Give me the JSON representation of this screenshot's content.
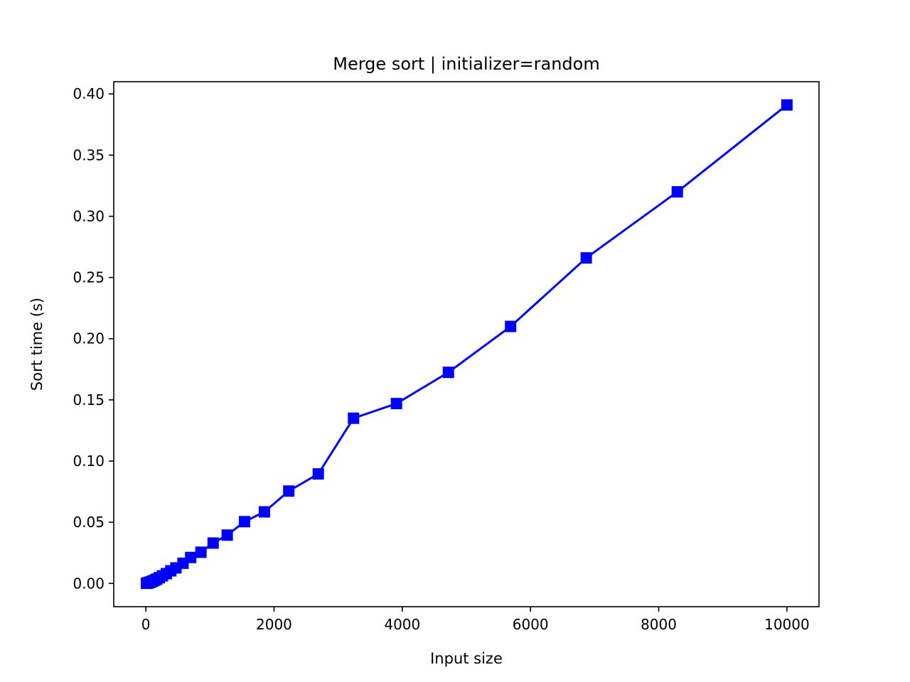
{
  "chart_data": {
    "type": "line",
    "title": "Merge sort | initializer=random",
    "xlabel": "Input size",
    "ylabel": "Sort time (s)",
    "xlim": [
      -500,
      10500
    ],
    "ylim": [
      -0.019,
      0.41
    ],
    "xticks": [
      0,
      2000,
      4000,
      6000,
      8000,
      10000
    ],
    "xtick_labels": [
      "0",
      "2000",
      "4000",
      "6000",
      "8000",
      "10000"
    ],
    "yticks": [
      0.0,
      0.05,
      0.1,
      0.15,
      0.2,
      0.25,
      0.3,
      0.35,
      0.4
    ],
    "ytick_labels": [
      "0.00",
      "0.05",
      "0.10",
      "0.15",
      "0.20",
      "0.25",
      "0.30",
      "0.35",
      "0.40"
    ],
    "grid": false,
    "legend": "none",
    "series": [
      {
        "color": "#0000ff",
        "marker": "square",
        "x": [
          10,
          20,
          30,
          40,
          55,
          70,
          90,
          110,
          140,
          170,
          210,
          260,
          320,
          390,
          470,
          580,
          700,
          860,
          1050,
          1270,
          1540,
          1850,
          2230,
          2690,
          3240,
          3910,
          4720,
          5690,
          6870,
          8290,
          10000
        ],
        "y": [
          0.0001,
          0.0002,
          0.0004,
          0.0005,
          0.0008,
          0.0011,
          0.0015,
          0.002,
          0.0027,
          0.0035,
          0.0047,
          0.0062,
          0.008,
          0.0103,
          0.0127,
          0.0165,
          0.0212,
          0.0255,
          0.033,
          0.0395,
          0.0505,
          0.0585,
          0.0755,
          0.0895,
          0.135,
          0.147,
          0.1725,
          0.21,
          0.266,
          0.32,
          0.391
        ]
      }
    ]
  }
}
